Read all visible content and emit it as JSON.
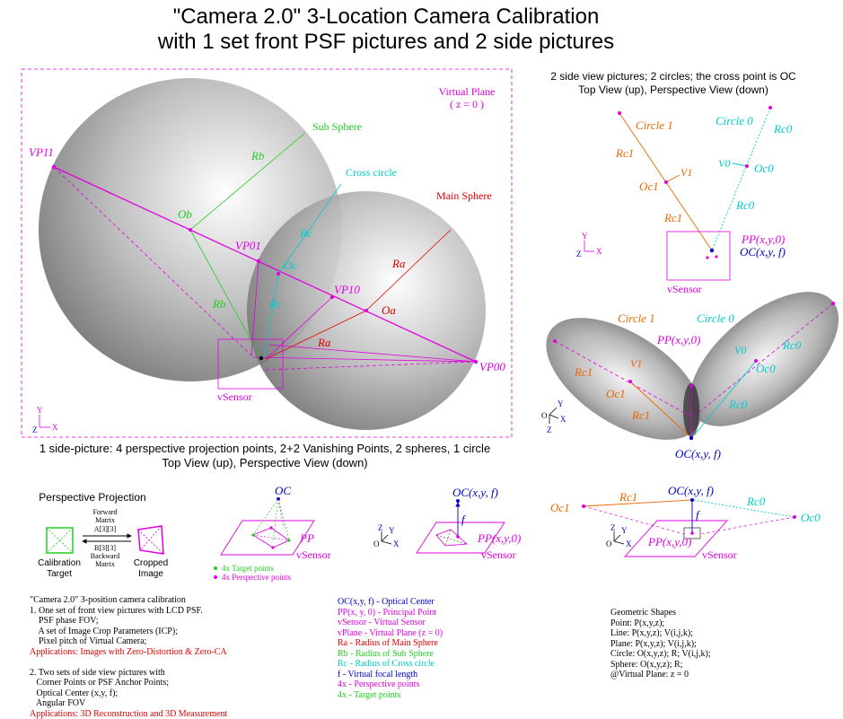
{
  "title": {
    "line1": "\"Camera 2.0\" 3-Location Camera Calibration",
    "line2": "with 1 set front PSF pictures and 2 side pictures"
  },
  "left_diagram": {
    "virtual_plane": "Virtual Plane",
    "virtual_plane_z": "( z = 0 )",
    "sub_sphere": "Sub Sphere",
    "cross_circle": "Cross circle",
    "main_sphere": "Main Sphere",
    "vp11": "VP11",
    "vp01": "VP01",
    "vp10": "VP10",
    "vp00": "VP00",
    "rb_top": "Rb",
    "rb_bottom": "Rb",
    "ob": "Ob",
    "rc_top": "Rc",
    "rc_bottom": "Rc",
    "oc": "Oc",
    "ra_top": "Ra",
    "ra_bottom": "Ra",
    "oa": "Oa",
    "vsensor": "vSensor",
    "axis_y": "Y",
    "axis_x": "X",
    "axis_z": "Z"
  },
  "left_caption": {
    "line1": "1 side-picture: 4 perspective projection points, 2+2 Vanishing Points, 2 spheres, 1 circle",
    "line2": "Top View (up), Perspective View (down)"
  },
  "right_caption": {
    "line1": "2 side view pictures; 2 circles; the cross point is OC",
    "line2": "Top View (up), Perspective View (down)"
  },
  "right_top": {
    "circle1": "Circle 1",
    "circle0": "Circle 0",
    "rc0_a": "Rc0",
    "rc1_a": "Rc1",
    "v1": "V1",
    "v0": "V0",
    "oc1": "Oc1",
    "oc0": "Oc0",
    "rc0_b": "Rc0",
    "rc1_b": "Rc1",
    "pp": "PP(x,y,0)",
    "oc": "OC(x,y, f)",
    "vsensor": "vSensor",
    "axis_y": "Y",
    "axis_x": "X",
    "axis_z": "Z"
  },
  "right_mid": {
    "circle1": "Circle 1",
    "circle0": "Circle 0",
    "pp": "PP(x,y,0)",
    "rc0_a": "Rc0",
    "v1": "V1",
    "v0": "V0",
    "rc1_a": "Rc1",
    "oc1": "Oc1",
    "oc0": "Oc0",
    "rc1_b": "Rc1",
    "rc0_b": "Rc0",
    "oc": "OC(x,y, f)",
    "axis_y": "Y",
    "axis_x": "X",
    "axis_z": "Z",
    "axis_o": "O"
  },
  "projection": {
    "title": "Perspective Projection",
    "forward1": "Forward",
    "forward2": "Matrix",
    "forward3": "A[3][3]",
    "backward1": "B[3][3]",
    "backward2": "Backward",
    "backward3": "Matrix",
    "target1": "Calibration",
    "target2": "Target",
    "cropped1": "Cropped",
    "cropped2": "Image"
  },
  "mini1": {
    "oc": "OC",
    "pp": "PP",
    "vsensor": "vSensor",
    "legend1": "4x  Target points",
    "legend2": "4x  Perspective points"
  },
  "mini2": {
    "oc": "OC(x,y, f)",
    "f": "f",
    "pp": "PP(x,y,0)",
    "vsensor": "vSensor",
    "axis_z": "Z",
    "axis_y": "Y",
    "axis_x": "X",
    "axis_o": "O"
  },
  "mini3": {
    "oc1": "Oc1",
    "rc1": "Rc1",
    "oc": "OC(x,y, f)",
    "rc0": "Rc0",
    "oc0": "Oc0",
    "f": "f",
    "pp": "PP(x,y,0)",
    "vsensor": "vSensor",
    "axis_z": "Z",
    "axis_y": "Y",
    "axis_x": "X",
    "axis_o": "O"
  },
  "notes_left": [
    {
      "text": "\"Camera 2.0\" 3-position camera calibration",
      "color": "#000000"
    },
    {
      "text": "1. One set of front view pictures with LCD PSF.",
      "color": "#000000"
    },
    {
      "text": "    PSF phase FOV;",
      "color": "#000000"
    },
    {
      "text": "    A set of Image Crop Parameters (ICP);",
      "color": "#000000"
    },
    {
      "text": "    Pixel pitch of Virtual Camera;",
      "color": "#000000"
    },
    {
      "text": "Applications: Images with Zero-Distortion & Zero-CA",
      "color": "#e00000"
    },
    {
      "text": "",
      "color": "#000000"
    },
    {
      "text": "2. Two sets of side view pictures with",
      "color": "#000000"
    },
    {
      "text": "   Corner Points or PSF Anchor Points;",
      "color": "#000000"
    },
    {
      "text": "   Optical Center (x,y, f);",
      "color": "#000000"
    },
    {
      "text": "   Angular FOV",
      "color": "#000000"
    },
    {
      "text": "Applications: 3D Reconstruction and 3D Measurement",
      "color": "#e00000"
    }
  ],
  "notes_mid": [
    {
      "text": "OC(x,y, f) - Optical Center",
      "color": "#0000cc"
    },
    {
      "text": "PP(x, y, 0) - Principal Point",
      "color": "#e000e0"
    },
    {
      "text": "vSensor - Virtual Sensor",
      "color": "#e000e0"
    },
    {
      "text": "vPlane - Virtual Plane (z = 0)",
      "color": "#e000e0"
    },
    {
      "text": "Ra - Radius of Main Sphere",
      "color": "#e00000"
    },
    {
      "text": "Rb - Radius of Sub Sphere",
      "color": "#22cc22"
    },
    {
      "text": "Rc - Radius of Cross circle",
      "color": "#00cccc"
    },
    {
      "text": "f - Virtual focal length",
      "color": "#0000cc"
    },
    {
      "text": "4x - Perspective points",
      "color": "#e000e0"
    },
    {
      "text": "4x - Target points",
      "color": "#22cc22"
    }
  ],
  "notes_right": [
    {
      "text": "Geometric Shapes",
      "color": "#000000"
    },
    {
      "text": "Point: P(x,y,z);",
      "color": "#000000"
    },
    {
      "text": "Line: P(x,y,z); V(i,j,k);",
      "color": "#000000"
    },
    {
      "text": "Plane: P(x,y,z); V(i,j,k);",
      "color": "#000000"
    },
    {
      "text": "Circle: O(x,y,z); R; V(i,j,k);",
      "color": "#000000"
    },
    {
      "text": "Sphere: O(x,y,z); R;",
      "color": "#000000"
    },
    {
      "text": "@Virtual Plane: z = 0",
      "color": "#000000"
    }
  ],
  "colors": {
    "magenta": "#e000e0",
    "green": "#22cc22",
    "cyan": "#00cccc",
    "red": "#e00000",
    "orange": "#ee6600",
    "blue": "#0000cc"
  }
}
